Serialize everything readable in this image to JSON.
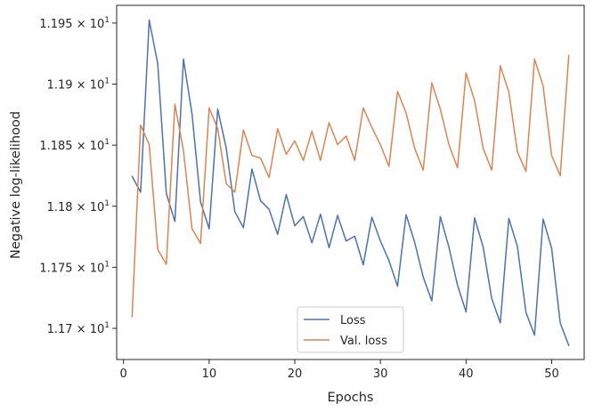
{
  "chart_data": {
    "type": "line",
    "xlabel": "Epochs",
    "ylabel": "Negative log-likelihood",
    "xlim": [
      -0.8,
      53.8
    ],
    "ylim": [
      11.6745,
      11.9645
    ],
    "x_ticks": [
      0,
      10,
      20,
      30,
      40,
      50
    ],
    "x_tick_labels": [
      "0",
      "10",
      "20",
      "30",
      "40",
      "50"
    ],
    "y_ticks": [
      11.7,
      11.75,
      11.8,
      11.85,
      11.9,
      11.95
    ],
    "y_tick_labels": [
      {
        "mantissa": "1.17",
        "exp": "1"
      },
      {
        "mantissa": "1.175",
        "exp": "1"
      },
      {
        "mantissa": "1.18",
        "exp": "1"
      },
      {
        "mantissa": "1.185",
        "exp": "1"
      },
      {
        "mantissa": "1.19",
        "exp": "1"
      },
      {
        "mantissa": "1.195",
        "exp": "1"
      }
    ],
    "tick_multiplier": "× 10",
    "legend_position": "lower center",
    "grid": false,
    "x": [
      1,
      2,
      3,
      4,
      5,
      6,
      7,
      8,
      9,
      10,
      11,
      12,
      13,
      14,
      15,
      16,
      17,
      18,
      19,
      20,
      21,
      22,
      23,
      24,
      25,
      26,
      27,
      28,
      29,
      30,
      31,
      32,
      33,
      34,
      35,
      36,
      37,
      38,
      39,
      40,
      41,
      42,
      43,
      44,
      45,
      46,
      47,
      48,
      49,
      50,
      51,
      52
    ],
    "series": [
      {
        "name": "Loss",
        "color": "#4c72b0",
        "values": [
          11.8245,
          11.8115,
          11.9525,
          11.9165,
          11.8105,
          11.7875,
          11.9205,
          11.8755,
          11.8035,
          11.7815,
          11.8795,
          11.8475,
          11.7955,
          11.7825,
          11.8305,
          11.8045,
          11.7975,
          11.777,
          11.8095,
          11.784,
          11.7915,
          11.77,
          11.7935,
          11.766,
          11.7925,
          11.7715,
          11.7755,
          11.752,
          11.791,
          11.7715,
          11.7555,
          11.7345,
          11.793,
          11.7705,
          11.742,
          11.7225,
          11.7915,
          11.7665,
          11.7355,
          11.7135,
          11.7905,
          11.7665,
          11.7245,
          11.7045,
          11.79,
          11.767,
          11.713,
          11.6945,
          11.7895,
          11.7655,
          11.7045,
          11.686
        ]
      },
      {
        "name": "Val. loss",
        "color": "#dd8452",
        "values": [
          11.7095,
          11.8665,
          11.8505,
          11.7645,
          11.7525,
          11.8835,
          11.8455,
          11.7815,
          11.7695,
          11.8805,
          11.8635,
          11.8185,
          11.8115,
          11.8625,
          11.8415,
          11.8395,
          11.8235,
          11.8635,
          11.8425,
          11.8535,
          11.8375,
          11.8615,
          11.8375,
          11.8685,
          11.8505,
          11.8575,
          11.8375,
          11.8805,
          11.8645,
          11.8505,
          11.8325,
          11.894,
          11.8765,
          11.8475,
          11.8295,
          11.901,
          11.8795,
          11.8505,
          11.8315,
          11.909,
          11.8865,
          11.8475,
          11.8295,
          11.915,
          11.8935,
          11.8445,
          11.8285,
          11.9205,
          11.8985,
          11.8415,
          11.825,
          11.9235
        ]
      }
    ]
  }
}
